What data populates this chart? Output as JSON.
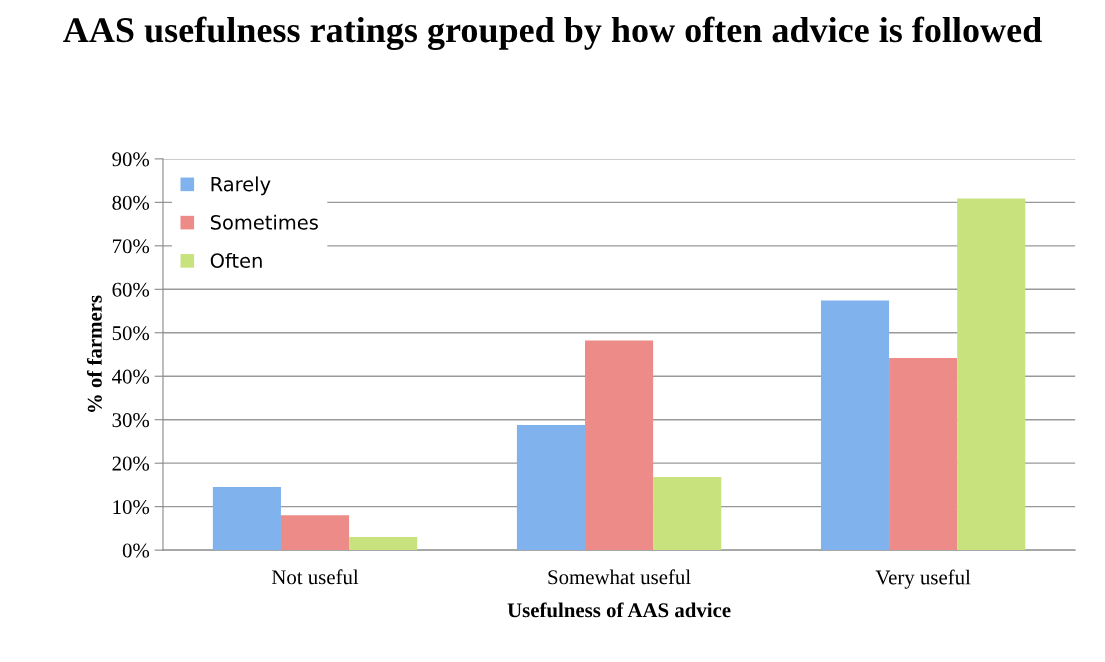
{
  "chart_data": {
    "type": "bar",
    "title": "AAS usefulness ratings grouped by how often advice is followed",
    "xlabel": "Usefulness of AAS advice",
    "ylabel": "% of farmers",
    "categories": [
      "Not useful",
      "Somewhat useful",
      "Very useful"
    ],
    "series": [
      {
        "name": "Rarely",
        "color": "#80b2ee",
        "values": [
          14.5,
          28.8,
          57.4
        ]
      },
      {
        "name": "Sometimes",
        "color": "#ec8b87",
        "values": [
          8,
          48.2,
          44.2
        ]
      },
      {
        "name": "Often",
        "color": "#c8e27e",
        "values": [
          3,
          16.8,
          80.9
        ]
      }
    ],
    "ylim": [
      0,
      90
    ],
    "yticks": [
      {
        "value": 0,
        "label": "0%"
      },
      {
        "value": 10,
        "label": "10%"
      },
      {
        "value": 20,
        "label": "20%"
      },
      {
        "value": 30,
        "label": "30%"
      },
      {
        "value": 40,
        "label": "40%"
      },
      {
        "value": 50,
        "label": "50%"
      },
      {
        "value": 60,
        "label": "60%"
      },
      {
        "value": 70,
        "label": "70%"
      },
      {
        "value": 80,
        "label": "80%"
      },
      {
        "value": 90,
        "label": "90%"
      }
    ],
    "grid": "y",
    "legend": "top left"
  }
}
